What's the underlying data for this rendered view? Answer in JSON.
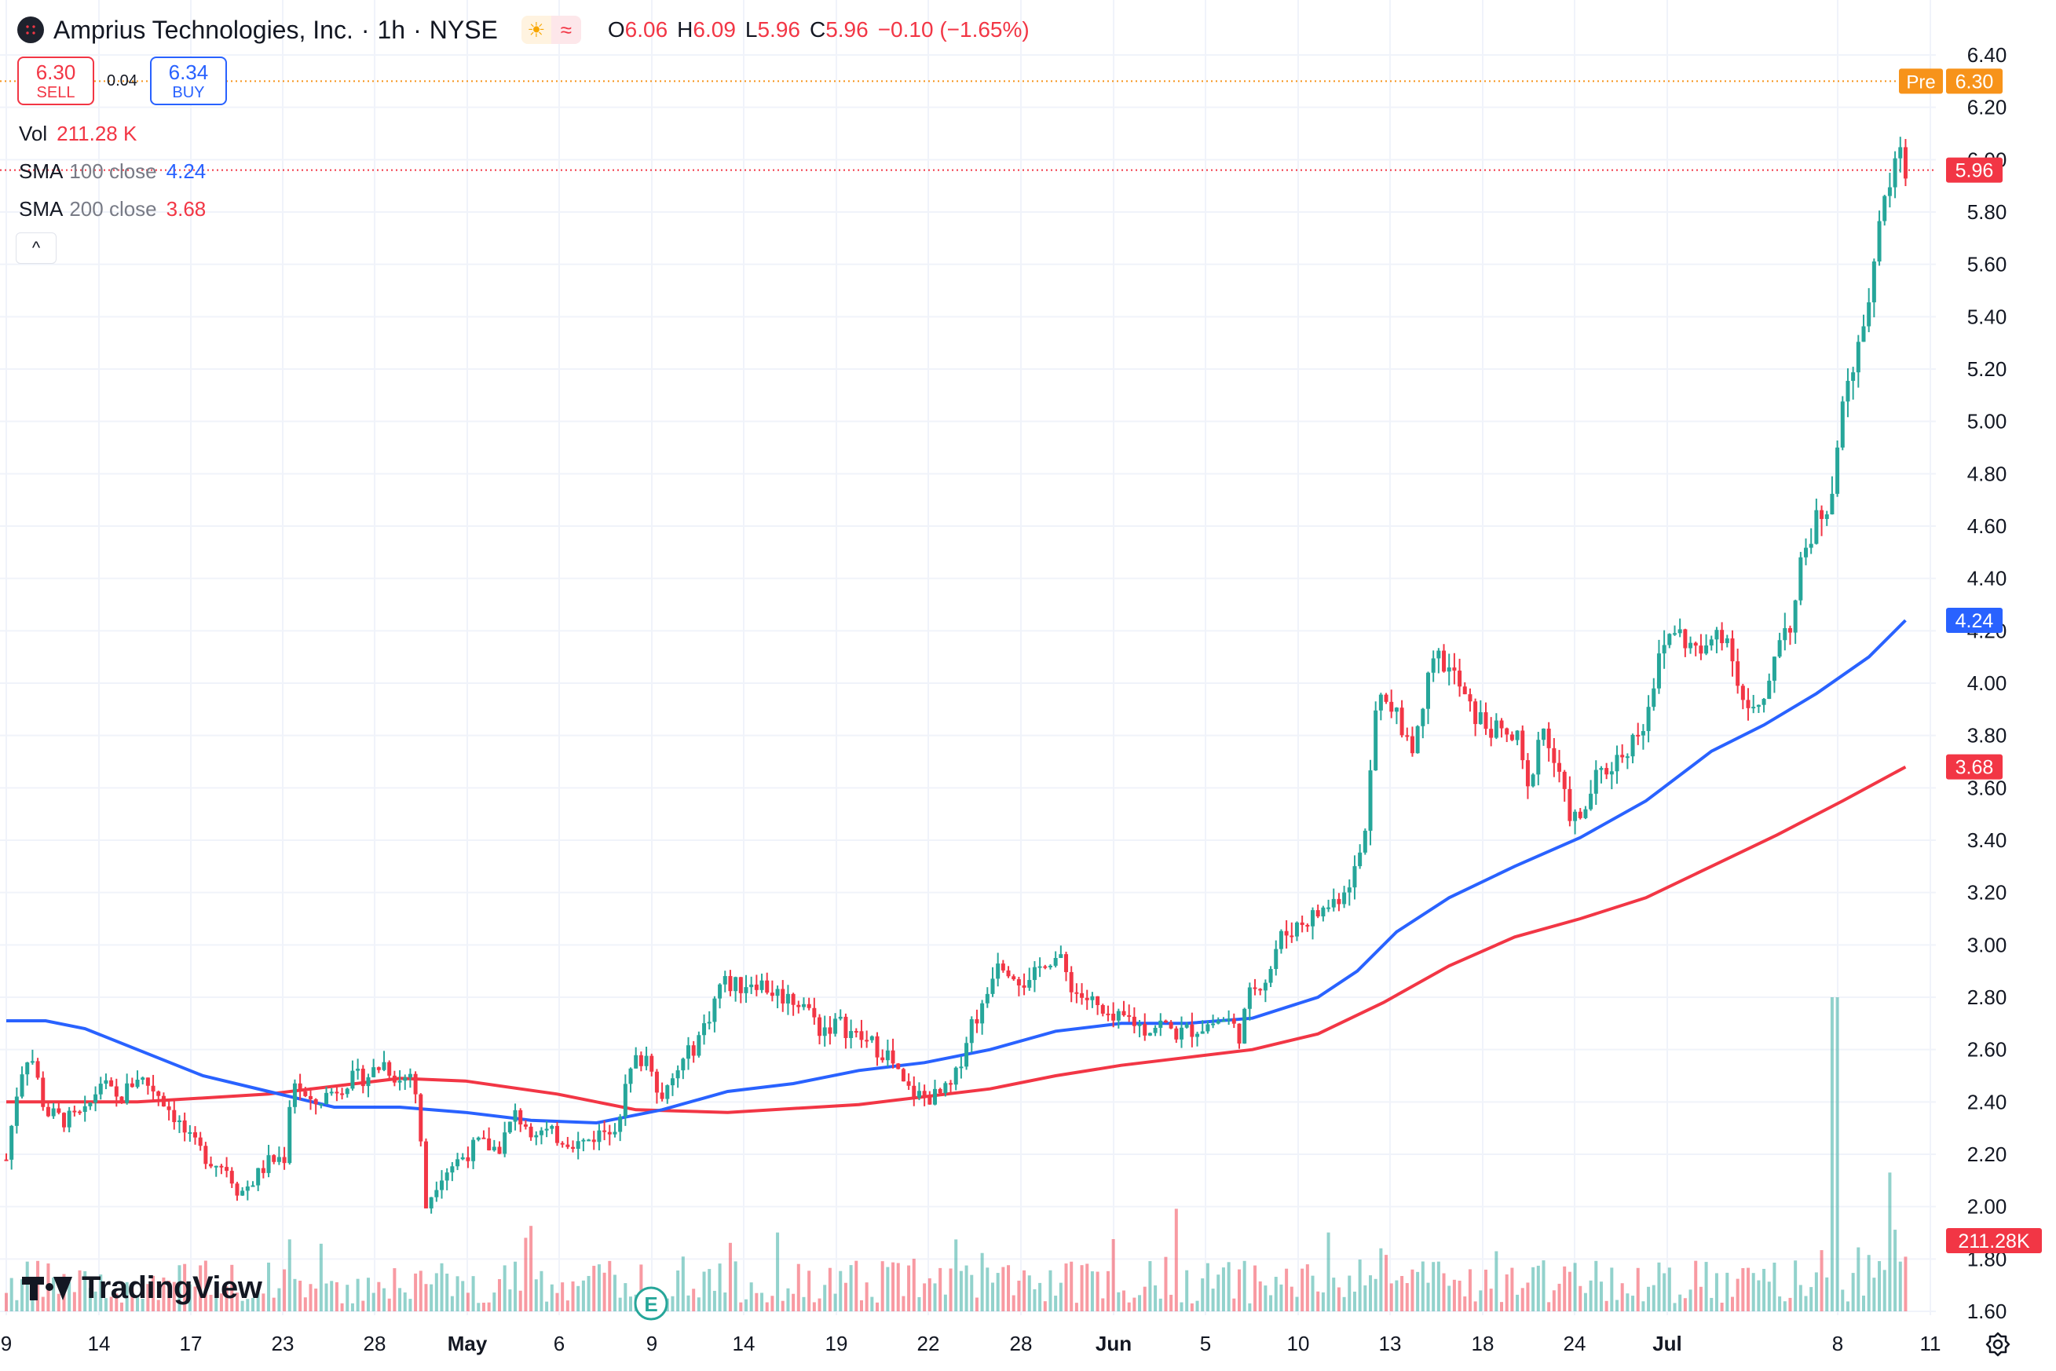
{
  "header": {
    "symbol_name": "Amprius Technologies, Inc.",
    "interval": "1h",
    "exchange": "NYSE",
    "sep": "·",
    "ohlc": {
      "o_label": "O",
      "o": "6.06",
      "h_label": "H",
      "h": "6.09",
      "l_label": "L",
      "l": "5.96",
      "c_label": "C",
      "c": "5.96",
      "change": "−0.10 (−1.65%)"
    }
  },
  "trade": {
    "sell_price": "6.30",
    "sell_label": "SELL",
    "spread": "0.04",
    "buy_price": "6.34",
    "buy_label": "BUY"
  },
  "legend": {
    "vol_label": "Vol",
    "vol_value": "211.28 K",
    "sma100_name": "SMA",
    "sma100_desc": "100 close",
    "sma100_value": "4.24",
    "sma200_name": "SMA",
    "sma200_desc": "200 close",
    "sma200_value": "3.68"
  },
  "collapse_glyph": "^",
  "brand": "TradingView",
  "icons": [
    "sun-icon",
    "wave-icon",
    "chevron-up-icon",
    "settings-icon",
    "earnings-icon"
  ],
  "colors": {
    "up": "#26a69a",
    "down": "#f23645",
    "sma100": "#2962ff",
    "sma200": "#f23645",
    "pre": "#f7931a",
    "grid": "#f0f3fa"
  },
  "chart_data": {
    "type": "candlestick",
    "timeframe": "1h",
    "y_ticks": [
      1.6,
      1.8,
      2.0,
      2.2,
      2.4,
      2.6,
      2.8,
      3.0,
      3.2,
      3.4,
      3.6,
      3.8,
      4.0,
      4.2,
      4.4,
      4.6,
      4.8,
      5.0,
      5.2,
      5.4,
      5.6,
      5.8,
      6.0,
      6.2,
      6.4
    ],
    "ylim": [
      1.55,
      6.45
    ],
    "x_ticks": [
      "9",
      "14",
      "17",
      "23",
      "28",
      "May",
      "6",
      "9",
      "14",
      "19",
      "22",
      "28",
      "Jun",
      "5",
      "10",
      "13",
      "18",
      "24",
      "Jul",
      "8",
      "11"
    ],
    "price_labels": [
      {
        "tag": "Pre",
        "value": "6.30"
      },
      {
        "value": "5.96"
      },
      {
        "value": "4.24"
      },
      {
        "value": "3.68"
      },
      {
        "value": "211.28K"
      }
    ],
    "close_path": [
      [
        0,
        2.18
      ],
      [
        10,
        2.5
      ],
      [
        18,
        2.6
      ],
      [
        30,
        2.36
      ],
      [
        45,
        2.33
      ],
      [
        60,
        2.35
      ],
      [
        72,
        2.48
      ],
      [
        85,
        2.4
      ],
      [
        100,
        2.5
      ],
      [
        115,
        2.44
      ],
      [
        128,
        2.35
      ],
      [
        140,
        2.25
      ],
      [
        155,
        2.18
      ],
      [
        168,
        2.15
      ],
      [
        178,
        2.05
      ],
      [
        188,
        2.1
      ],
      [
        200,
        2.17
      ],
      [
        212,
        2.19
      ],
      [
        218,
        2.5
      ],
      [
        232,
        2.38
      ],
      [
        245,
        2.43
      ],
      [
        260,
        2.48
      ],
      [
        275,
        2.5
      ],
      [
        288,
        2.55
      ],
      [
        300,
        2.48
      ],
      [
        310,
        2.52
      ],
      [
        314,
        2.35
      ],
      [
        320,
        2.0
      ],
      [
        330,
        2.12
      ],
      [
        345,
        2.18
      ],
      [
        360,
        2.24
      ],
      [
        375,
        2.22
      ],
      [
        388,
        2.35
      ],
      [
        400,
        2.3
      ],
      [
        412,
        2.28
      ],
      [
        425,
        2.26
      ],
      [
        438,
        2.24
      ],
      [
        452,
        2.28
      ],
      [
        465,
        2.32
      ],
      [
        478,
        2.55
      ],
      [
        490,
        2.58
      ],
      [
        500,
        2.4
      ],
      [
        512,
        2.52
      ],
      [
        525,
        2.62
      ],
      [
        535,
        2.72
      ],
      [
        545,
        2.86
      ],
      [
        558,
        2.84
      ],
      [
        570,
        2.87
      ],
      [
        585,
        2.82
      ],
      [
        595,
        2.8
      ],
      [
        608,
        2.78
      ],
      [
        620,
        2.68
      ],
      [
        635,
        2.7
      ],
      [
        648,
        2.65
      ],
      [
        660,
        2.62
      ],
      [
        672,
        2.58
      ],
      [
        685,
        2.45
      ],
      [
        698,
        2.42
      ],
      [
        710,
        2.42
      ],
      [
        722,
        2.46
      ],
      [
        735,
        2.7
      ],
      [
        745,
        2.76
      ],
      [
        755,
        2.96
      ],
      [
        768,
        2.9
      ],
      [
        780,
        2.84
      ],
      [
        792,
        2.95
      ],
      [
        802,
        2.95
      ],
      [
        815,
        2.82
      ],
      [
        828,
        2.78
      ],
      [
        840,
        2.7
      ],
      [
        855,
        2.72
      ],
      [
        868,
        2.68
      ],
      [
        880,
        2.7
      ],
      [
        893,
        2.66
      ],
      [
        905,
        2.68
      ],
      [
        918,
        2.7
      ],
      [
        930,
        2.72
      ],
      [
        940,
        2.66
      ],
      [
        950,
        2.84
      ],
      [
        962,
        2.88
      ],
      [
        970,
        3.02
      ],
      [
        985,
        3.08
      ],
      [
        1000,
        3.12
      ],
      [
        1015,
        3.18
      ],
      [
        1030,
        3.3
      ],
      [
        1038,
        3.5
      ],
      [
        1045,
        3.95
      ],
      [
        1055,
        3.9
      ],
      [
        1065,
        3.82
      ],
      [
        1075,
        3.76
      ],
      [
        1085,
        4.12
      ],
      [
        1095,
        4.08
      ],
      [
        1105,
        4.02
      ],
      [
        1115,
        3.9
      ],
      [
        1128,
        3.84
      ],
      [
        1140,
        3.8
      ],
      [
        1152,
        3.78
      ],
      [
        1160,
        3.58
      ],
      [
        1170,
        3.85
      ],
      [
        1180,
        3.7
      ],
      [
        1190,
        3.52
      ],
      [
        1200,
        3.46
      ],
      [
        1210,
        3.62
      ],
      [
        1222,
        3.68
      ],
      [
        1235,
        3.75
      ],
      [
        1248,
        3.85
      ],
      [
        1258,
        4.05
      ],
      [
        1270,
        4.22
      ],
      [
        1282,
        4.15
      ],
      [
        1295,
        4.1
      ],
      [
        1305,
        4.22
      ],
      [
        1315,
        4.15
      ],
      [
        1322,
        3.95
      ],
      [
        1330,
        3.88
      ],
      [
        1340,
        3.9
      ],
      [
        1350,
        4.18
      ],
      [
        1362,
        4.24
      ],
      [
        1370,
        4.5
      ],
      [
        1380,
        4.62
      ],
      [
        1390,
        4.7
      ],
      [
        1398,
        4.98
      ],
      [
        1405,
        5.2
      ],
      [
        1412,
        5.3
      ],
      [
        1420,
        5.5
      ],
      [
        1428,
        5.72
      ],
      [
        1435,
        5.9
      ],
      [
        1442,
        6.04
      ],
      [
        1448,
        5.96
      ]
    ],
    "sma100": [
      [
        0,
        2.71
      ],
      [
        30,
        2.71
      ],
      [
        60,
        2.68
      ],
      [
        100,
        2.6
      ],
      [
        150,
        2.5
      ],
      [
        200,
        2.44
      ],
      [
        250,
        2.38
      ],
      [
        300,
        2.38
      ],
      [
        350,
        2.36
      ],
      [
        400,
        2.33
      ],
      [
        450,
        2.32
      ],
      [
        500,
        2.37
      ],
      [
        550,
        2.44
      ],
      [
        600,
        2.47
      ],
      [
        650,
        2.52
      ],
      [
        700,
        2.55
      ],
      [
        750,
        2.6
      ],
      [
        800,
        2.67
      ],
      [
        850,
        2.7
      ],
      [
        900,
        2.7
      ],
      [
        950,
        2.72
      ],
      [
        1000,
        2.8
      ],
      [
        1030,
        2.9
      ],
      [
        1060,
        3.05
      ],
      [
        1100,
        3.18
      ],
      [
        1150,
        3.3
      ],
      [
        1200,
        3.41
      ],
      [
        1250,
        3.55
      ],
      [
        1300,
        3.74
      ],
      [
        1340,
        3.84
      ],
      [
        1380,
        3.96
      ],
      [
        1420,
        4.1
      ],
      [
        1448,
        4.24
      ]
    ],
    "sma200": [
      [
        0,
        2.4
      ],
      [
        100,
        2.4
      ],
      [
        200,
        2.43
      ],
      [
        300,
        2.49
      ],
      [
        350,
        2.48
      ],
      [
        420,
        2.43
      ],
      [
        480,
        2.37
      ],
      [
        550,
        2.36
      ],
      [
        650,
        2.39
      ],
      [
        750,
        2.45
      ],
      [
        800,
        2.5
      ],
      [
        850,
        2.54
      ],
      [
        900,
        2.57
      ],
      [
        950,
        2.6
      ],
      [
        1000,
        2.66
      ],
      [
        1050,
        2.78
      ],
      [
        1100,
        2.92
      ],
      [
        1150,
        3.03
      ],
      [
        1200,
        3.1
      ],
      [
        1250,
        3.18
      ],
      [
        1300,
        3.3
      ],
      [
        1350,
        3.42
      ],
      [
        1400,
        3.55
      ],
      [
        1448,
        3.68
      ]
    ],
    "volume_max": "~1.5M"
  }
}
